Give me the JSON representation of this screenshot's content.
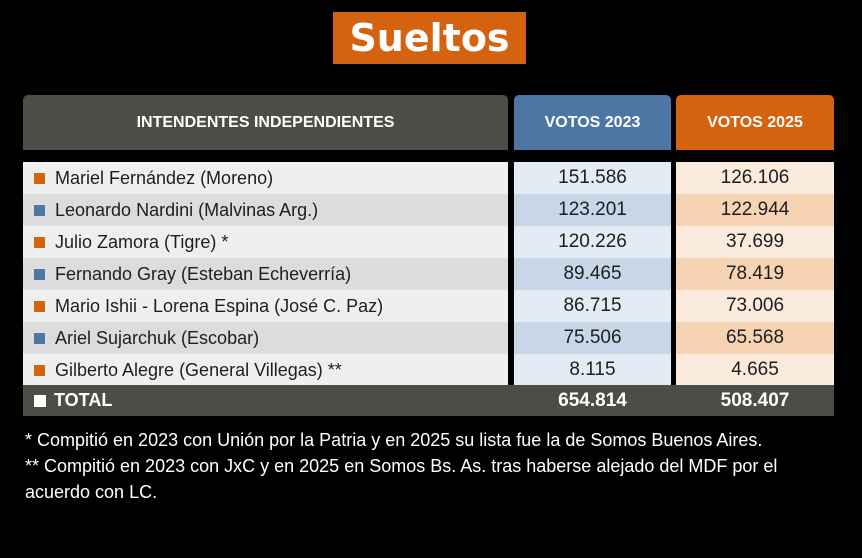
{
  "title": "Sueltos",
  "colors": {
    "orange": "#d5620f",
    "blue": "#4d76a5",
    "header_gray": "#4b4d47"
  },
  "chart_data": {
    "type": "table",
    "columns": [
      "INTENDENTES INDEPENDIENTES",
      "VOTOS 2023",
      "VOTOS 2025"
    ],
    "rows": [
      {
        "name": "Mariel Fernández (Moreno)",
        "marker": "orange",
        "v2023": "151.586",
        "v2025": "126.106"
      },
      {
        "name": "Leonardo Nardini (Malvinas Arg.)",
        "marker": "blue",
        "v2023": "123.201",
        "v2025": "122.944"
      },
      {
        "name": "Julio Zamora (Tigre) *",
        "marker": "orange",
        "v2023": "120.226",
        "v2025": "37.699"
      },
      {
        "name": "Fernando Gray (Esteban Echeverría)",
        "marker": "blue",
        "v2023": "89.465",
        "v2025": "78.419"
      },
      {
        "name": "Mario Ishii - Lorena Espina (José C. Paz)",
        "marker": "orange",
        "v2023": "86.715",
        "v2025": "73.006"
      },
      {
        "name": "Ariel Sujarchuk (Escobar)",
        "marker": "blue",
        "v2023": "75.506",
        "v2025": "65.568"
      },
      {
        "name": "Gilberto Alegre (General Villegas) **",
        "marker": "orange",
        "v2023": "8.115",
        "v2025": "4.665"
      }
    ],
    "total": {
      "label": "TOTAL",
      "v2023": "654.814",
      "v2025": "508.407"
    }
  },
  "notes": [
    "* Compitió en 2023 con Unión por la Patria y en 2025 su lista fue la de Somos Buenos Aires.",
    "** Compitió en 2023 con JxC y en 2025 en Somos Bs. As. tras haberse alejado del MDF por el acuerdo con LC."
  ]
}
